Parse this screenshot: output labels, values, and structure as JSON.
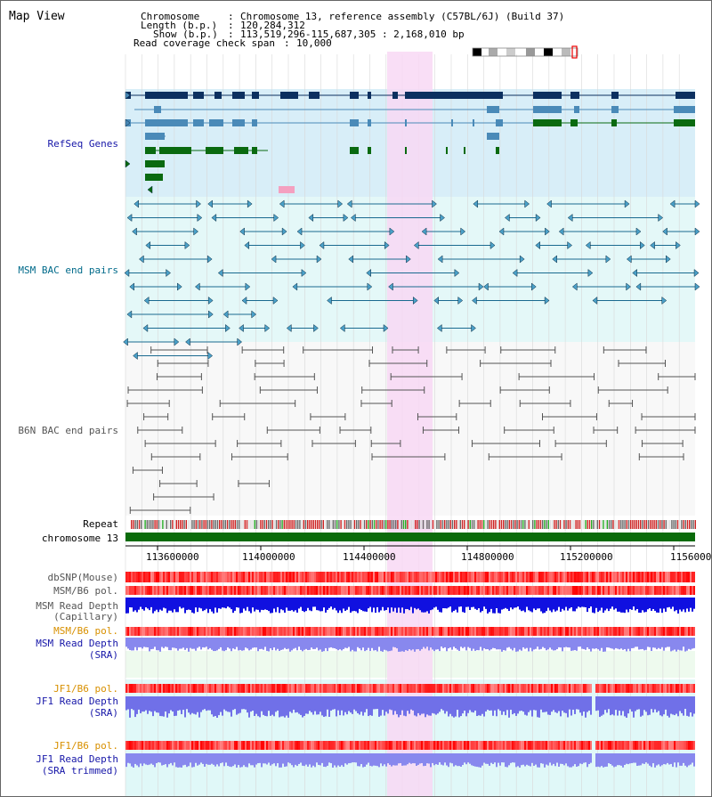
{
  "title": "Map View",
  "info": {
    "chromosome_label": "Chromosome",
    "chromosome_value": "Chromosome 13, reference assembly (C57BL/6J) (Build 37)",
    "length_label": "Length (b.p.)",
    "length_value": "120,284,312",
    "show_label": "Show (b.p.)",
    "show_value": "113,519,296-115,687,305 : 2,168,010 bp",
    "coverage_label": "Read coverage check span",
    "coverage_value": "10,000"
  },
  "tracks": {
    "refseq": "RefSeq Genes",
    "msm_bac": "MSM BAC end pairs",
    "b6n_bac": "B6N BAC end pairs",
    "repeat": "Repeat",
    "chromosome": "chromosome 13",
    "dbsnp": "dbSNP(Mouse)",
    "msm_b6_pol_1": "MSM/B6 pol.",
    "msm_depth_cap_1": "MSM Read Depth",
    "msm_depth_cap_2": "(Capillary)",
    "msm_b6_pol_2": "MSM/B6 pol.",
    "msm_depth_sra_1": "MSM Read Depth",
    "msm_depth_sra_2": "(SRA)",
    "jf1_b6_pol_1": "JF1/B6 pol.",
    "jf1_depth_sra_1": "JF1 Read Depth",
    "jf1_depth_sra_2": "(SRA)",
    "jf1_b6_pol_2": "JF1/B6 pol.",
    "jf1_depth_trim_1": "JF1 Read Depth",
    "jf1_depth_trim_2": "(SRA trimmed)"
  },
  "axis": {
    "ticks": [
      "113600000",
      "114000000",
      "114400000",
      "114800000",
      "115200000",
      "1156000"
    ]
  },
  "colors": {
    "refseq_bg": "#d8eef8",
    "msm_bg": "#e4f8f8",
    "b6n_bg": "#f8f8f8",
    "highlight": "#f8d8f4",
    "gene_dark": "#0c3060",
    "gene_mid": "#4a8ab8",
    "gene_green": "#0a6a10",
    "msm_line": "#1a6a90",
    "b6n_line": "#555555",
    "chrom": "#0b6b0b",
    "label_blue": "#1616a8",
    "label_teal": "#006a8a",
    "label_gray": "#555555",
    "label_orange": "#d89000"
  }
}
